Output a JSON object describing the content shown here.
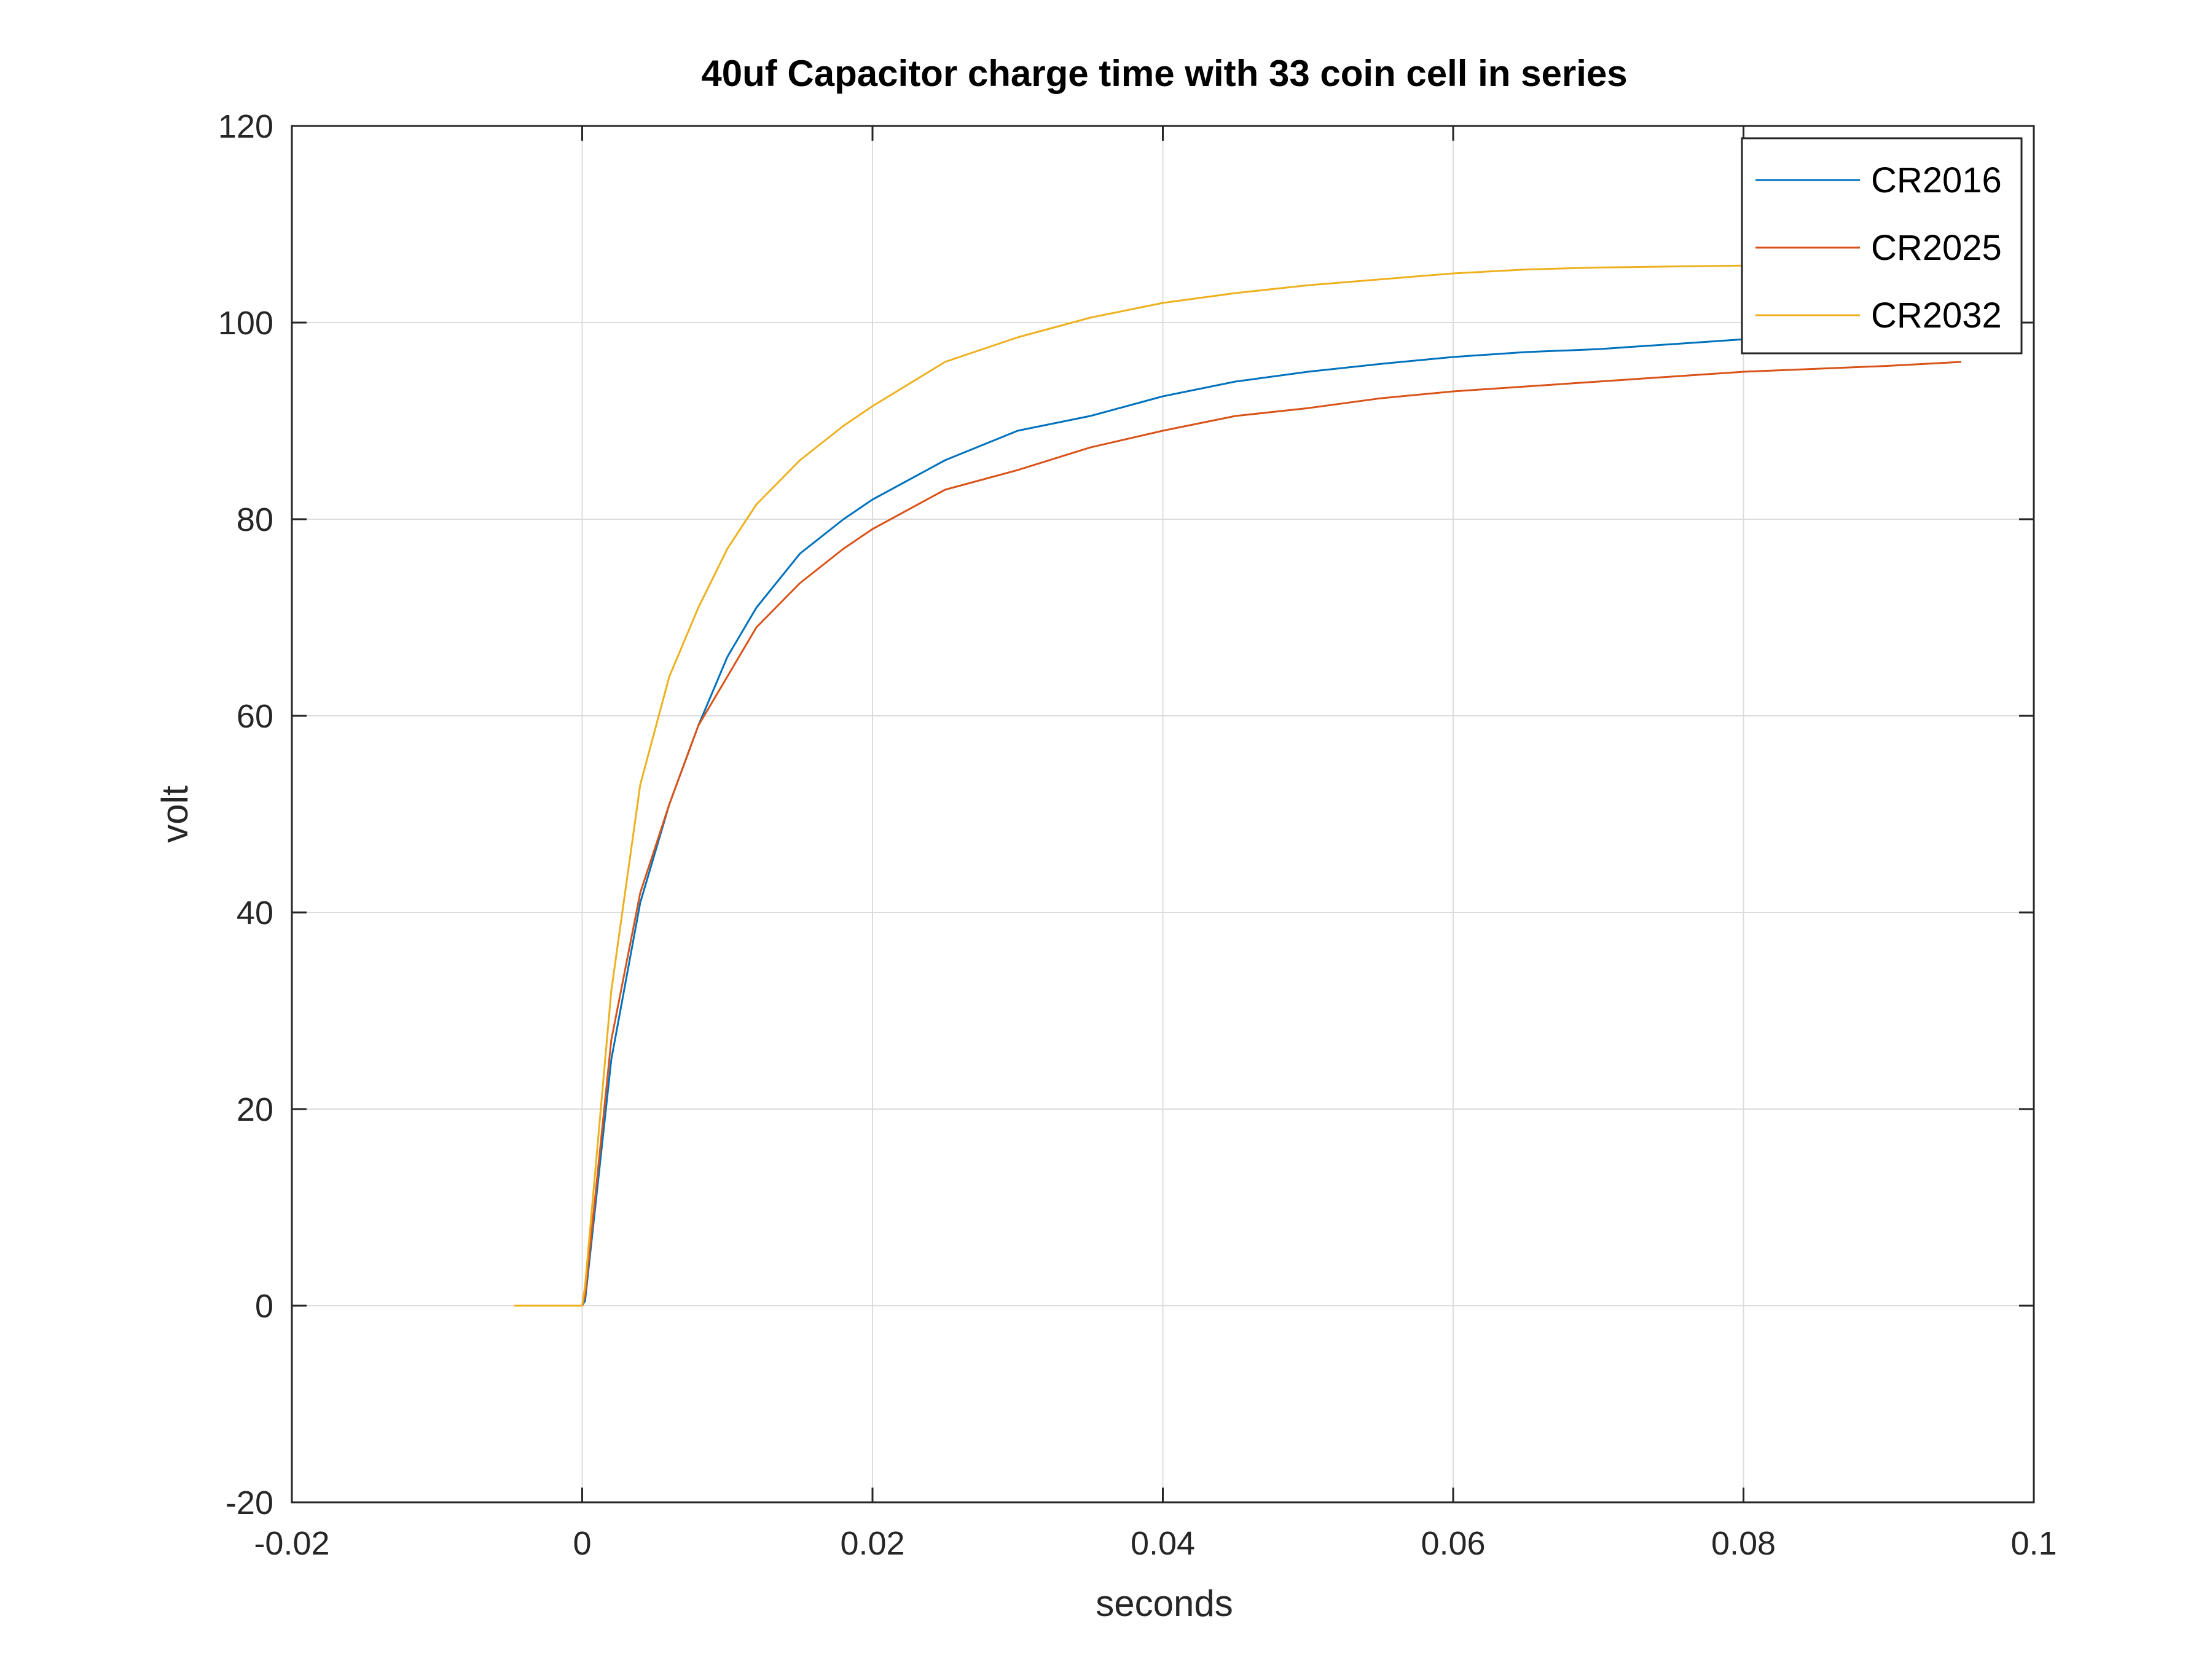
{
  "chart_data": {
    "type": "line",
    "title": "40uf Capacitor charge time with 33 coin cell in series",
    "xlabel": "seconds",
    "ylabel": "volt",
    "xlim": [
      -0.02,
      0.1
    ],
    "ylim": [
      -20,
      120
    ],
    "xticks": [
      -0.02,
      0,
      0.02,
      0.04,
      0.06,
      0.08,
      0.1
    ],
    "xtick_labels": [
      "-0.02",
      "0",
      "0.02",
      "0.04",
      "0.06",
      "0.08",
      "0.1"
    ],
    "yticks": [
      -20,
      0,
      20,
      40,
      60,
      80,
      100,
      120
    ],
    "ytick_labels": [
      "-20",
      "0",
      "20",
      "40",
      "60",
      "80",
      "100",
      "120"
    ],
    "grid": true,
    "legend_position": "top-right",
    "series": [
      {
        "name": "CR2016",
        "color": "#0072BD",
        "x": [
          -0.0047,
          -0.002,
          0.0,
          0.0002,
          0.002,
          0.004,
          0.006,
          0.008,
          0.01,
          0.012,
          0.015,
          0.018,
          0.02,
          0.025,
          0.03,
          0.035,
          0.04,
          0.045,
          0.05,
          0.055,
          0.06,
          0.065,
          0.07,
          0.075,
          0.08,
          0.085,
          0.09,
          0.095
        ],
        "y": [
          0,
          0,
          0,
          0.5,
          25,
          41,
          51,
          59,
          66,
          71,
          76.5,
          80,
          82,
          86,
          89,
          90.5,
          92.5,
          94,
          95,
          95.8,
          96.5,
          97,
          97.3,
          97.8,
          98.3,
          98.7,
          99.2,
          99.6
        ]
      },
      {
        "name": "CR2025",
        "color": "#D95319",
        "x": [
          -0.0047,
          -0.002,
          0.0,
          0.0002,
          0.002,
          0.004,
          0.006,
          0.008,
          0.01,
          0.012,
          0.015,
          0.018,
          0.02,
          0.025,
          0.03,
          0.035,
          0.04,
          0.045,
          0.05,
          0.055,
          0.06,
          0.065,
          0.07,
          0.075,
          0.08,
          0.085,
          0.09,
          0.095
        ],
        "y": [
          0,
          0,
          0,
          1,
          27,
          42,
          51,
          59,
          64,
          69,
          73.5,
          77,
          79,
          83,
          85,
          87.3,
          89,
          90.5,
          91.3,
          92.3,
          93,
          93.5,
          94,
          94.5,
          95,
          95.3,
          95.6,
          96
        ]
      },
      {
        "name": "CR2032",
        "color": "#EDB120",
        "x": [
          -0.0047,
          -0.002,
          0.0,
          0.0002,
          0.002,
          0.004,
          0.006,
          0.008,
          0.01,
          0.012,
          0.015,
          0.018,
          0.02,
          0.025,
          0.03,
          0.035,
          0.04,
          0.045,
          0.05,
          0.055,
          0.06,
          0.065,
          0.07,
          0.075,
          0.08,
          0.085,
          0.09,
          0.095
        ],
        "y": [
          0,
          0,
          0,
          2,
          32,
          53,
          64,
          71,
          77,
          81.5,
          86,
          89.5,
          91.5,
          96,
          98.5,
          100.5,
          102,
          103,
          103.8,
          104.4,
          105,
          105.4,
          105.6,
          105.7,
          105.8,
          105.8,
          105.8,
          105.8
        ]
      }
    ]
  }
}
